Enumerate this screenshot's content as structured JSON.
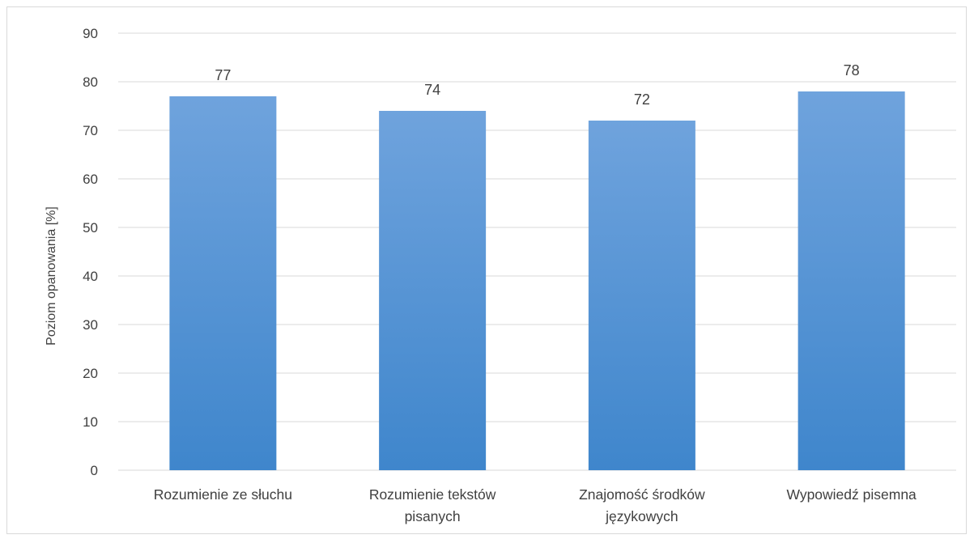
{
  "chart_data": {
    "type": "bar",
    "categories": [
      [
        "Rozumienie ze słuchu"
      ],
      [
        "Rozumienie tekstów",
        "pisanych"
      ],
      [
        "Znajomość środków",
        "językowych"
      ],
      [
        "Wypowiedź pisemna"
      ]
    ],
    "values": [
      77,
      74,
      72,
      78
    ],
    "data_labels": [
      "77",
      "74",
      "72",
      "78"
    ],
    "ylabel": "Poziom opanowania [%]",
    "xlabel": "",
    "ylim": [
      0,
      90
    ],
    "yticks": [
      "0",
      "10",
      "20",
      "30",
      "40",
      "50",
      "60",
      "70",
      "80",
      "90"
    ],
    "grid": true,
    "legend": "none",
    "colors": {
      "bar_top": "#6fa3dd",
      "bar_bottom": "#3f86cc",
      "grid": "#d9d9d9",
      "text": "#404040"
    }
  }
}
